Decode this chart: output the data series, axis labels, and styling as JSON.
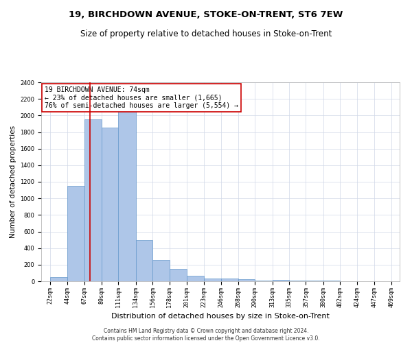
{
  "title": "19, BIRCHDOWN AVENUE, STOKE-ON-TRENT, ST6 7EW",
  "subtitle": "Size of property relative to detached houses in Stoke-on-Trent",
  "xlabel": "Distribution of detached houses by size in Stoke-on-Trent",
  "ylabel": "Number of detached properties",
  "annotation_line1": "19 BIRCHDOWN AVENUE: 74sqm",
  "annotation_line2": "← 23% of detached houses are smaller (1,665)",
  "annotation_line3": "76% of semi-detached houses are larger (5,554) →",
  "property_size": 74,
  "footer_line1": "Contains HM Land Registry data © Crown copyright and database right 2024.",
  "footer_line2": "Contains public sector information licensed under the Open Government Licence v3.0.",
  "bar_left_edges": [
    22,
    44,
    67,
    89,
    111,
    134,
    156,
    178,
    201,
    223,
    246,
    268,
    290,
    313,
    335,
    357,
    380,
    402,
    424,
    447
  ],
  "bar_widths": [
    22,
    23,
    22,
    22,
    23,
    22,
    22,
    23,
    22,
    23,
    22,
    22,
    23,
    22,
    22,
    23,
    22,
    22,
    23,
    22
  ],
  "bar_heights": [
    50,
    1150,
    1950,
    1850,
    2100,
    500,
    260,
    150,
    70,
    35,
    30,
    25,
    10,
    15,
    10,
    5,
    5,
    2,
    2,
    2
  ],
  "x_tick_labels": [
    "22sqm",
    "44sqm",
    "67sqm",
    "89sqm",
    "111sqm",
    "134sqm",
    "156sqm",
    "178sqm",
    "201sqm",
    "223sqm",
    "246sqm",
    "268sqm",
    "290sqm",
    "313sqm",
    "335sqm",
    "357sqm",
    "380sqm",
    "402sqm",
    "424sqm",
    "447sqm",
    "469sqm"
  ],
  "x_tick_positions": [
    22,
    44,
    67,
    89,
    111,
    134,
    156,
    178,
    201,
    223,
    246,
    268,
    290,
    313,
    335,
    357,
    380,
    402,
    424,
    447,
    469
  ],
  "ylim": [
    0,
    2400
  ],
  "xlim": [
    10,
    480
  ],
  "bar_color": "#aec6e8",
  "bar_edge_color": "#6699cc",
  "red_line_color": "#cc0000",
  "annotation_box_edge_color": "#cc0000",
  "background_color": "#ffffff",
  "grid_color": "#d0d8e8",
  "title_fontsize": 9.5,
  "subtitle_fontsize": 8.5,
  "xlabel_fontsize": 8,
  "ylabel_fontsize": 7.5,
  "tick_fontsize": 6,
  "annotation_fontsize": 7,
  "footer_fontsize": 5.5
}
